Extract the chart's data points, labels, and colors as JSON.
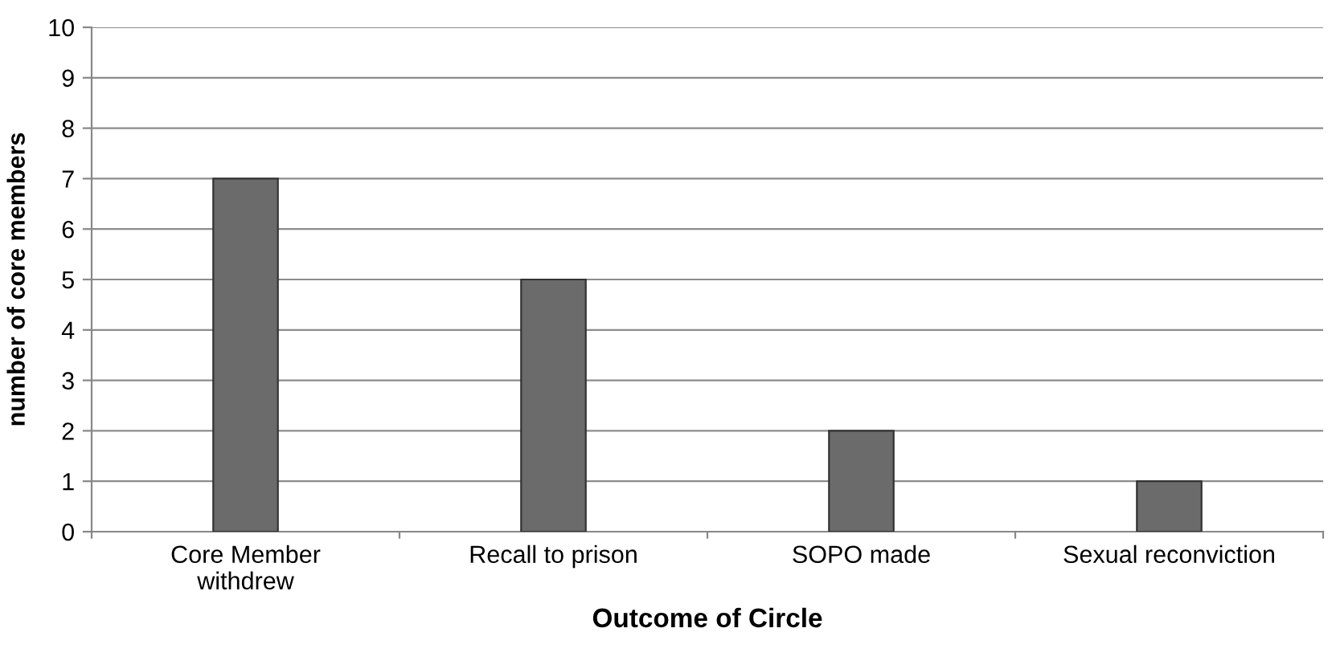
{
  "chart_data": {
    "type": "bar",
    "xlabel": "Outcome of Circle",
    "ylabel": "number of core members",
    "categories": [
      "Core Member\nwithdrew",
      "Recall to prison",
      "SOPO made",
      "Sexual reconviction"
    ],
    "values": [
      7,
      5,
      2,
      1
    ],
    "color": "#6b6b6b",
    "ylim": [
      0,
      10
    ],
    "yticks": [
      0,
      1,
      2,
      3,
      4,
      5,
      6,
      7,
      8,
      9,
      10
    ],
    "grid": "y",
    "legend": false
  }
}
